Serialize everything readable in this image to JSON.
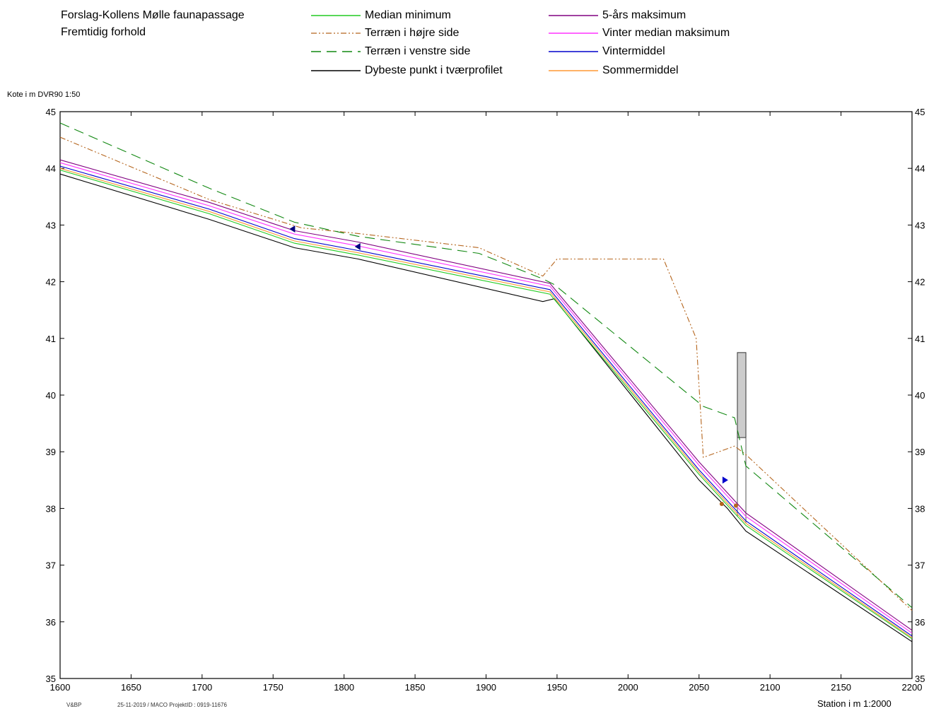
{
  "header": {
    "line1": "Forslag-Kollens Mølle faunapassage",
    "line2": "Fremtidig forhold"
  },
  "legend": [
    {
      "label": "Median minimum",
      "color": "#22cc22",
      "dash": ""
    },
    {
      "label": "Terræn i højre side",
      "color": "#b5651d",
      "dash": "8,3,2,3,2,3"
    },
    {
      "label": "Terræn i venstre side",
      "color": "#118811",
      "dash": "14,8"
    },
    {
      "label": "Dybeste punkt i tværprofilet",
      "color": "#000000",
      "dash": ""
    },
    {
      "label": "5-års maksimum",
      "color": "#800080",
      "dash": ""
    },
    {
      "label": "Vinter median maksimum",
      "color": "#ff33ff",
      "dash": ""
    },
    {
      "label": "Vintermiddel",
      "color": "#0000cc",
      "dash": ""
    },
    {
      "label": "Sommermiddel",
      "color": "#ff9933",
      "dash": ""
    }
  ],
  "footer": {
    "left_code": "V&BP",
    "left_stamp": "25-11-2019 / MACO  ProjektID : 0919-11676"
  },
  "chart_data": {
    "type": "line",
    "ylabel": "Kote i m DVR90 1:50",
    "xlabel": "Station i m  1:2000",
    "xlim": [
      1600,
      2200
    ],
    "ylim": [
      35,
      45
    ],
    "x_ticks": [
      1600,
      1650,
      1700,
      1750,
      1800,
      1850,
      1900,
      1950,
      2000,
      2050,
      2100,
      2150,
      2200
    ],
    "y_ticks": [
      35,
      36,
      37,
      38,
      39,
      40,
      41,
      42,
      43,
      44,
      45
    ],
    "grid": false,
    "series": [
      {
        "name": "Dybeste punkt i tværprofilet",
        "color": "#000000",
        "dash": "",
        "points": [
          [
            1600,
            43.9
          ],
          [
            1705,
            43.1
          ],
          [
            1765,
            42.6
          ],
          [
            1810,
            42.4
          ],
          [
            1940,
            41.65
          ],
          [
            1948,
            41.7
          ],
          [
            2050,
            38.5
          ],
          [
            2070,
            38.0
          ],
          [
            2083,
            37.6
          ],
          [
            2200,
            35.65
          ]
        ]
      },
      {
        "name": "Median minimum",
        "color": "#22cc22",
        "dash": "",
        "points": [
          [
            1600,
            43.97
          ],
          [
            1705,
            43.2
          ],
          [
            1765,
            42.68
          ],
          [
            1810,
            42.47
          ],
          [
            1945,
            41.78
          ],
          [
            2050,
            38.6
          ],
          [
            2083,
            37.7
          ],
          [
            2200,
            35.7
          ]
        ]
      },
      {
        "name": "Sommermiddel",
        "color": "#ff9933",
        "dash": "",
        "points": [
          [
            1600,
            44.0
          ],
          [
            1705,
            43.24
          ],
          [
            1765,
            42.72
          ],
          [
            1810,
            42.51
          ],
          [
            1945,
            41.82
          ],
          [
            2050,
            38.64
          ],
          [
            2083,
            37.74
          ],
          [
            2200,
            35.72
          ]
        ]
      },
      {
        "name": "Vintermiddel",
        "color": "#0000cc",
        "dash": "",
        "points": [
          [
            1600,
            44.04
          ],
          [
            1705,
            43.28
          ],
          [
            1765,
            42.76
          ],
          [
            1810,
            42.55
          ],
          [
            1945,
            41.86
          ],
          [
            2050,
            38.68
          ],
          [
            2083,
            37.78
          ],
          [
            2200,
            35.75
          ]
        ]
      },
      {
        "name": "Vinter median maksimum",
        "color": "#ff33ff",
        "dash": "",
        "points": [
          [
            1600,
            44.1
          ],
          [
            1705,
            43.34
          ],
          [
            1765,
            42.84
          ],
          [
            1810,
            42.63
          ],
          [
            1945,
            41.92
          ],
          [
            2050,
            38.76
          ],
          [
            2083,
            37.86
          ],
          [
            2200,
            35.8
          ]
        ]
      },
      {
        "name": "5-års maksimum",
        "color": "#800080",
        "dash": "",
        "points": [
          [
            1600,
            44.15
          ],
          [
            1705,
            43.4
          ],
          [
            1765,
            42.9
          ],
          [
            1810,
            42.7
          ],
          [
            1945,
            41.97
          ],
          [
            2050,
            38.82
          ],
          [
            2083,
            37.92
          ],
          [
            2200,
            35.85
          ]
        ]
      },
      {
        "name": "Terræn i højre side",
        "color": "#b5651d",
        "dash": "8,3,2,3,2,3",
        "points": [
          [
            1600,
            44.55
          ],
          [
            1705,
            43.45
          ],
          [
            1770,
            42.95
          ],
          [
            1810,
            42.85
          ],
          [
            1895,
            42.6
          ],
          [
            1940,
            42.1
          ],
          [
            1950,
            42.4
          ],
          [
            2025,
            42.4
          ],
          [
            2048,
            41.0
          ],
          [
            2053,
            38.9
          ],
          [
            2075,
            39.1
          ],
          [
            2083,
            38.95
          ],
          [
            2200,
            36.2
          ]
        ]
      },
      {
        "name": "Terræn i venstre side",
        "color": "#118811",
        "dash": "14,8",
        "points": [
          [
            1600,
            44.8
          ],
          [
            1705,
            43.65
          ],
          [
            1765,
            43.05
          ],
          [
            1810,
            42.8
          ],
          [
            1895,
            42.5
          ],
          [
            1940,
            42.05
          ],
          [
            1948,
            41.95
          ],
          [
            2053,
            39.8
          ],
          [
            2075,
            39.6
          ],
          [
            2083,
            38.75
          ],
          [
            2200,
            36.25
          ]
        ]
      }
    ],
    "markers": [
      {
        "type": "triangle-left",
        "x": 1764,
        "y": 42.93,
        "color": "#000080"
      },
      {
        "type": "triangle-left",
        "x": 1810,
        "y": 42.62,
        "color": "#000080"
      },
      {
        "type": "triangle-right",
        "x": 2068,
        "y": 38.5,
        "color": "#0000cc"
      },
      {
        "type": "circle",
        "x": 2066,
        "y": 38.08,
        "color": "#b5651d"
      },
      {
        "type": "circle",
        "x": 2076,
        "y": 38.05,
        "color": "#b5651d"
      }
    ],
    "structure": {
      "x1": 2077,
      "x2": 2083,
      "y_top": 40.75,
      "y_bottom": 39.25
    }
  }
}
